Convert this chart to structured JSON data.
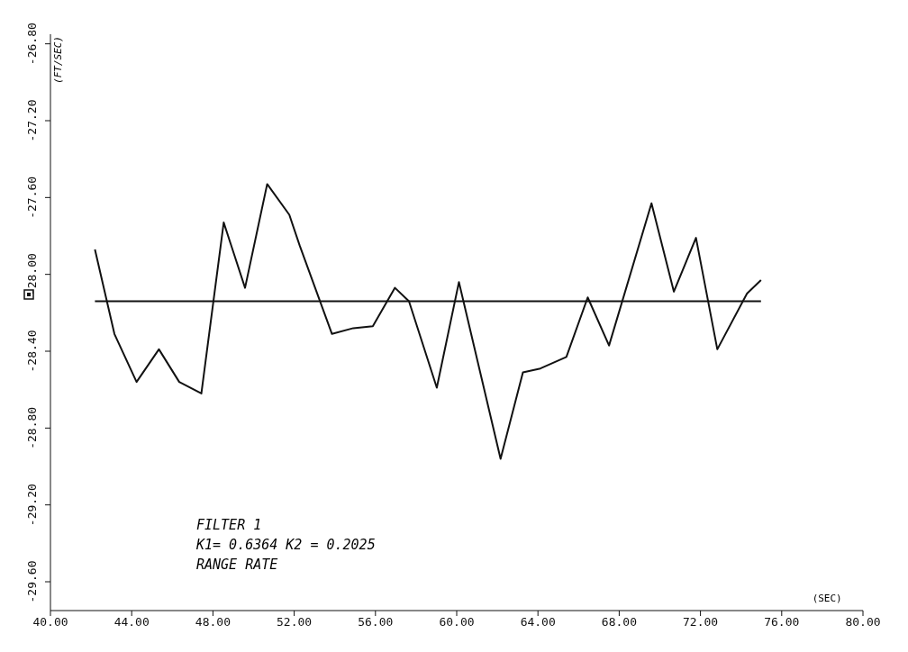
{
  "chart_data": {
    "type": "line",
    "xlabel": "(SEC)",
    "ylabel": "(FT/SEC)",
    "annotations": [
      "FILTER 1",
      "K1= 0.6364 K2 = 0.2025",
      "RANGE RATE"
    ],
    "series": [
      {
        "color": "#111111",
        "x": [
          42.19,
          43.15,
          44.24,
          45.34,
          46.34,
          47.43,
          48.53,
          49.58,
          50.67,
          51.76,
          52.27,
          53.86,
          54.91,
          55.87,
          56.96,
          57.65,
          59.02,
          60.11,
          62.16,
          63.26,
          64.12,
          65.4,
          66.45,
          67.5,
          69.59,
          70.69,
          71.78,
          72.83,
          74.29,
          74.98
        ],
        "values": [
          -27.87,
          -28.31,
          -28.56,
          -28.39,
          -28.56,
          -28.62,
          -27.73,
          -28.07,
          -27.53,
          -27.69,
          -27.85,
          -28.31,
          -28.28,
          -28.27,
          -28.07,
          -28.14,
          -28.59,
          -28.04,
          -28.96,
          -28.51,
          -28.49,
          -28.43,
          -28.12,
          -28.37,
          -27.63,
          -28.09,
          -27.81,
          -28.39,
          -28.1,
          -28.03
        ]
      },
      {
        "color": "#111111",
        "x": [
          42.19,
          74.98
        ],
        "values": [
          -28.14,
          -28.14
        ]
      }
    ],
    "xlim": [
      40,
      80
    ],
    "xticks": [
      {
        "value": 40,
        "label": "40.00"
      },
      {
        "value": 44,
        "label": "44.00"
      },
      {
        "value": 48,
        "label": "48.00"
      },
      {
        "value": 52,
        "label": "52.00"
      },
      {
        "value": 56,
        "label": "56.00"
      },
      {
        "value": 60,
        "label": "60.00"
      },
      {
        "value": 64,
        "label": "64.00"
      },
      {
        "value": 68,
        "label": "68.00"
      },
      {
        "value": 72,
        "label": "72.00"
      },
      {
        "value": 76,
        "label": "76.00"
      },
      {
        "value": 80,
        "label": "80.00"
      }
    ],
    "ylim": [
      -29.75,
      -26.75
    ],
    "yticks": [
      {
        "value": -29.6,
        "label": "-29.60"
      },
      {
        "value": -29.2,
        "label": "-29.20"
      },
      {
        "value": -28.8,
        "label": "-28.80"
      },
      {
        "value": -28.4,
        "label": "-28.40"
      },
      {
        "value": -28,
        "label": "-28.00"
      },
      {
        "value": -27.6,
        "label": "-27.60"
      },
      {
        "value": -27.2,
        "label": "-27.20"
      },
      {
        "value": -26.8,
        "label": "-26.80"
      }
    ],
    "grid": false,
    "legend": false,
    "marker": "none",
    "line_style": "solid"
  }
}
